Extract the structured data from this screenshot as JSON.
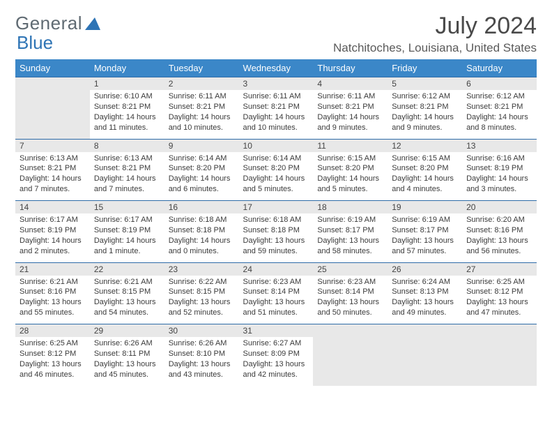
{
  "logo": {
    "part1": "General",
    "part2": "Blue"
  },
  "title": "July 2024",
  "location": "Natchitoches, Louisiana, United States",
  "colors": {
    "header_bg": "#3b87c8",
    "header_text": "#ffffff",
    "row_border": "#2e6ca8",
    "daynum_bg": "#e8e8e8",
    "text": "#333333",
    "logo_gray": "#5f6a72",
    "logo_blue": "#2e74b5"
  },
  "weekdays": [
    "Sunday",
    "Monday",
    "Tuesday",
    "Wednesday",
    "Thursday",
    "Friday",
    "Saturday"
  ],
  "weeks": [
    [
      null,
      {
        "n": "1",
        "sunrise": "6:10 AM",
        "sunset": "8:21 PM",
        "daylight": "14 hours and 11 minutes."
      },
      {
        "n": "2",
        "sunrise": "6:11 AM",
        "sunset": "8:21 PM",
        "daylight": "14 hours and 10 minutes."
      },
      {
        "n": "3",
        "sunrise": "6:11 AM",
        "sunset": "8:21 PM",
        "daylight": "14 hours and 10 minutes."
      },
      {
        "n": "4",
        "sunrise": "6:11 AM",
        "sunset": "8:21 PM",
        "daylight": "14 hours and 9 minutes."
      },
      {
        "n": "5",
        "sunrise": "6:12 AM",
        "sunset": "8:21 PM",
        "daylight": "14 hours and 9 minutes."
      },
      {
        "n": "6",
        "sunrise": "6:12 AM",
        "sunset": "8:21 PM",
        "daylight": "14 hours and 8 minutes."
      }
    ],
    [
      {
        "n": "7",
        "sunrise": "6:13 AM",
        "sunset": "8:21 PM",
        "daylight": "14 hours and 7 minutes."
      },
      {
        "n": "8",
        "sunrise": "6:13 AM",
        "sunset": "8:21 PM",
        "daylight": "14 hours and 7 minutes."
      },
      {
        "n": "9",
        "sunrise": "6:14 AM",
        "sunset": "8:20 PM",
        "daylight": "14 hours and 6 minutes."
      },
      {
        "n": "10",
        "sunrise": "6:14 AM",
        "sunset": "8:20 PM",
        "daylight": "14 hours and 5 minutes."
      },
      {
        "n": "11",
        "sunrise": "6:15 AM",
        "sunset": "8:20 PM",
        "daylight": "14 hours and 5 minutes."
      },
      {
        "n": "12",
        "sunrise": "6:15 AM",
        "sunset": "8:20 PM",
        "daylight": "14 hours and 4 minutes."
      },
      {
        "n": "13",
        "sunrise": "6:16 AM",
        "sunset": "8:19 PM",
        "daylight": "14 hours and 3 minutes."
      }
    ],
    [
      {
        "n": "14",
        "sunrise": "6:17 AM",
        "sunset": "8:19 PM",
        "daylight": "14 hours and 2 minutes."
      },
      {
        "n": "15",
        "sunrise": "6:17 AM",
        "sunset": "8:19 PM",
        "daylight": "14 hours and 1 minute."
      },
      {
        "n": "16",
        "sunrise": "6:18 AM",
        "sunset": "8:18 PM",
        "daylight": "14 hours and 0 minutes."
      },
      {
        "n": "17",
        "sunrise": "6:18 AM",
        "sunset": "8:18 PM",
        "daylight": "13 hours and 59 minutes."
      },
      {
        "n": "18",
        "sunrise": "6:19 AM",
        "sunset": "8:17 PM",
        "daylight": "13 hours and 58 minutes."
      },
      {
        "n": "19",
        "sunrise": "6:19 AM",
        "sunset": "8:17 PM",
        "daylight": "13 hours and 57 minutes."
      },
      {
        "n": "20",
        "sunrise": "6:20 AM",
        "sunset": "8:16 PM",
        "daylight": "13 hours and 56 minutes."
      }
    ],
    [
      {
        "n": "21",
        "sunrise": "6:21 AM",
        "sunset": "8:16 PM",
        "daylight": "13 hours and 55 minutes."
      },
      {
        "n": "22",
        "sunrise": "6:21 AM",
        "sunset": "8:15 PM",
        "daylight": "13 hours and 54 minutes."
      },
      {
        "n": "23",
        "sunrise": "6:22 AM",
        "sunset": "8:15 PM",
        "daylight": "13 hours and 52 minutes."
      },
      {
        "n": "24",
        "sunrise": "6:23 AM",
        "sunset": "8:14 PM",
        "daylight": "13 hours and 51 minutes."
      },
      {
        "n": "25",
        "sunrise": "6:23 AM",
        "sunset": "8:14 PM",
        "daylight": "13 hours and 50 minutes."
      },
      {
        "n": "26",
        "sunrise": "6:24 AM",
        "sunset": "8:13 PM",
        "daylight": "13 hours and 49 minutes."
      },
      {
        "n": "27",
        "sunrise": "6:25 AM",
        "sunset": "8:12 PM",
        "daylight": "13 hours and 47 minutes."
      }
    ],
    [
      {
        "n": "28",
        "sunrise": "6:25 AM",
        "sunset": "8:12 PM",
        "daylight": "13 hours and 46 minutes."
      },
      {
        "n": "29",
        "sunrise": "6:26 AM",
        "sunset": "8:11 PM",
        "daylight": "13 hours and 45 minutes."
      },
      {
        "n": "30",
        "sunrise": "6:26 AM",
        "sunset": "8:10 PM",
        "daylight": "13 hours and 43 minutes."
      },
      {
        "n": "31",
        "sunrise": "6:27 AM",
        "sunset": "8:09 PM",
        "daylight": "13 hours and 42 minutes."
      },
      null,
      null,
      null
    ]
  ],
  "labels": {
    "sunrise": "Sunrise:",
    "sunset": "Sunset:",
    "daylight": "Daylight:"
  }
}
